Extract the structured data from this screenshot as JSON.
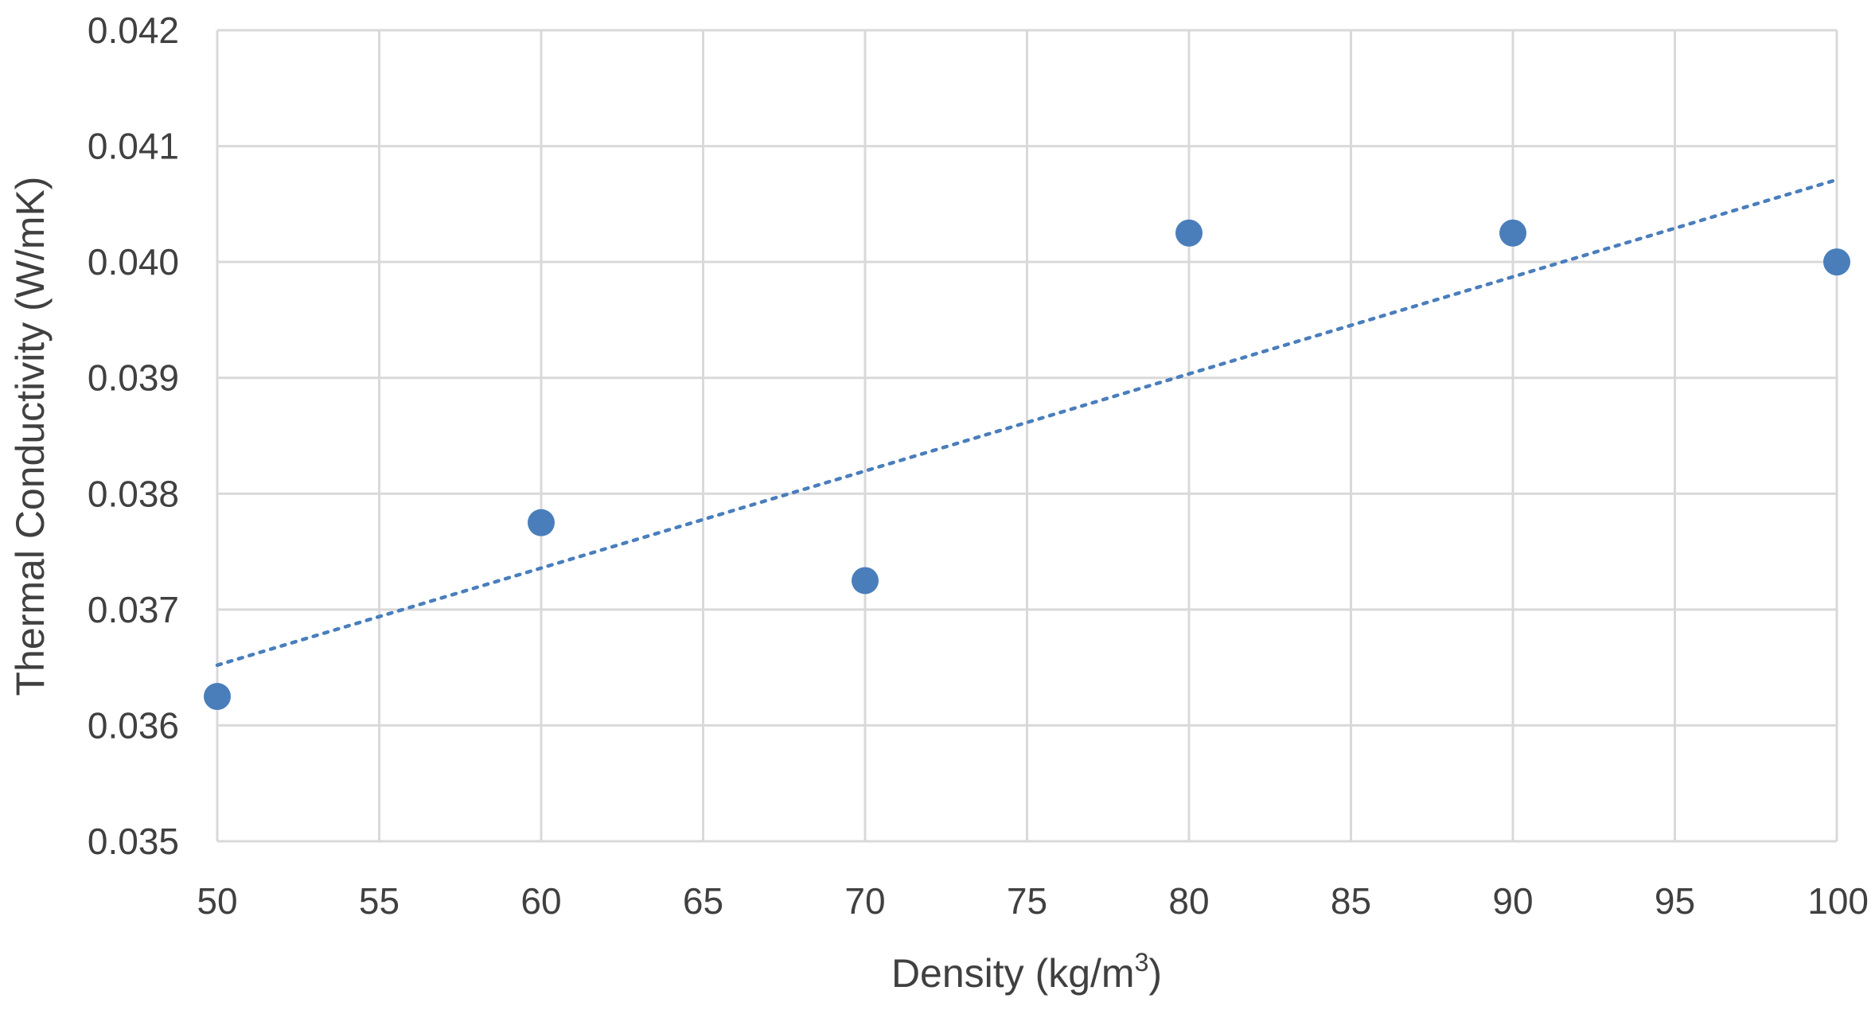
{
  "chart_data": {
    "type": "scatter",
    "title": "",
    "xlabel": "Density (kg/m",
    "xlabel_superscript": "3",
    "xlabel_suffix": ")",
    "ylabel": "Thermal Conductivity (W/mK)",
    "xlim": [
      50,
      100
    ],
    "ylim": [
      0.035,
      0.042
    ],
    "x_ticks": [
      50,
      55,
      60,
      65,
      70,
      75,
      80,
      85,
      90,
      95,
      100
    ],
    "x_tick_labels": [
      "50",
      "55",
      "60",
      "65",
      "70",
      "75",
      "80",
      "85",
      "90",
      "95",
      "100"
    ],
    "y_ticks": [
      0.035,
      0.036,
      0.037,
      0.038,
      0.039,
      0.04,
      0.041,
      0.042
    ],
    "y_tick_labels": [
      "0.035",
      "0.036",
      "0.037",
      "0.038",
      "0.039",
      "0.040",
      "0.041",
      "0.042"
    ],
    "grid": true,
    "series": [
      {
        "name": "Thermal conductivity",
        "x": [
          50,
          60,
          70,
          80,
          90,
          100
        ],
        "y": [
          0.03625,
          0.03775,
          0.03725,
          0.04025,
          0.04025,
          0.04
        ],
        "color": "#4a7ebb"
      }
    ],
    "trendline": {
      "type": "linear",
      "style": "dotted",
      "x": [
        50,
        100
      ],
      "y": [
        0.03652,
        0.04071
      ],
      "color": "#4a7ebb"
    }
  }
}
